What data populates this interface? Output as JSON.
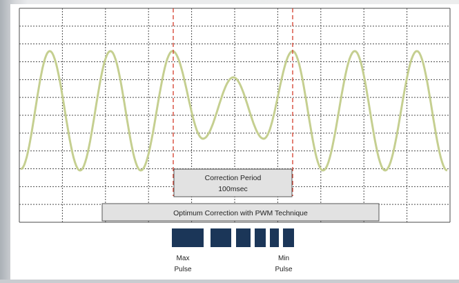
{
  "diagram": {
    "correction_box": {
      "line1": "Correction Period",
      "line2": "100msec"
    },
    "technique_label": "Optimum Correction with PWM Technique",
    "pulse_labels": {
      "max_line1": "Max",
      "max_line2": "Pulse",
      "min_line1": "Min",
      "min_line2": "Pulse"
    },
    "colors": {
      "wave": "#c5cf90",
      "marker": "#d43b2a",
      "grid": "#4a4a4a",
      "pulse_bar": "#1b3658",
      "box_fill": "#e2e2e2"
    }
  }
}
